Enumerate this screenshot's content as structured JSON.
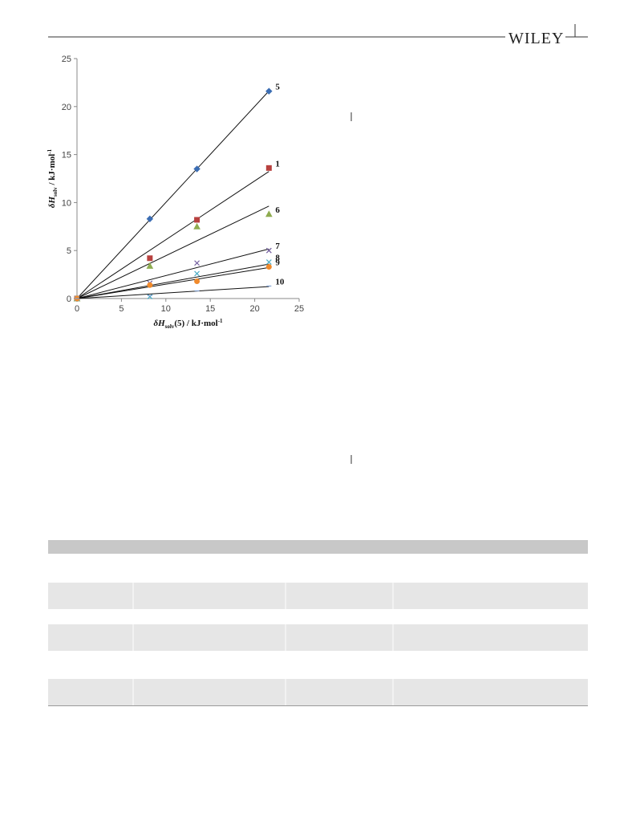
{
  "header": {
    "brand": "WILEY"
  },
  "chart_data": {
    "type": "scatter",
    "x": [
      0,
      8.2,
      13.5,
      21.6
    ],
    "series": [
      {
        "name": "5",
        "color": "#3b6db3",
        "marker": "diamond",
        "values": [
          0,
          8.3,
          13.5,
          21.6
        ]
      },
      {
        "name": "1",
        "color": "#b8413f",
        "marker": "square",
        "values": [
          0,
          4.2,
          8.2,
          13.6
        ]
      },
      {
        "name": "6",
        "color": "#8fac50",
        "marker": "triangle",
        "values": [
          0,
          3.4,
          7.5,
          8.8
        ]
      },
      {
        "name": "7",
        "color": "#6f5a9c",
        "marker": "x",
        "values": [
          0,
          1.6,
          3.7,
          5.0
        ]
      },
      {
        "name": "8",
        "color": "#4bacc6",
        "marker": "x",
        "values": [
          0,
          0.2,
          2.6,
          3.8
        ]
      },
      {
        "name": "9",
        "color": "#f08a2c",
        "marker": "circle",
        "values": [
          0,
          1.4,
          1.8,
          3.3
        ]
      },
      {
        "name": "10",
        "color": "#7f9fd0",
        "marker": "dash",
        "values": [
          0,
          0.3,
          0.8,
          1.3
        ]
      }
    ],
    "xlim": [
      0,
      25
    ],
    "xticks": [
      0,
      5,
      10,
      15,
      20,
      25
    ],
    "ylim": [
      0,
      25
    ],
    "yticks": [
      0,
      5,
      10,
      15,
      20,
      25
    ],
    "xlabel": {
      "main": "δH",
      "sub": "solv",
      "unit": "(5) / kJ·mol",
      "sup": "-1"
    },
    "ylabel": {
      "main": "δH",
      "sub": "solv",
      "unit": " / kJ·mol",
      "sup": "-1"
    },
    "trendlines": true
  }
}
